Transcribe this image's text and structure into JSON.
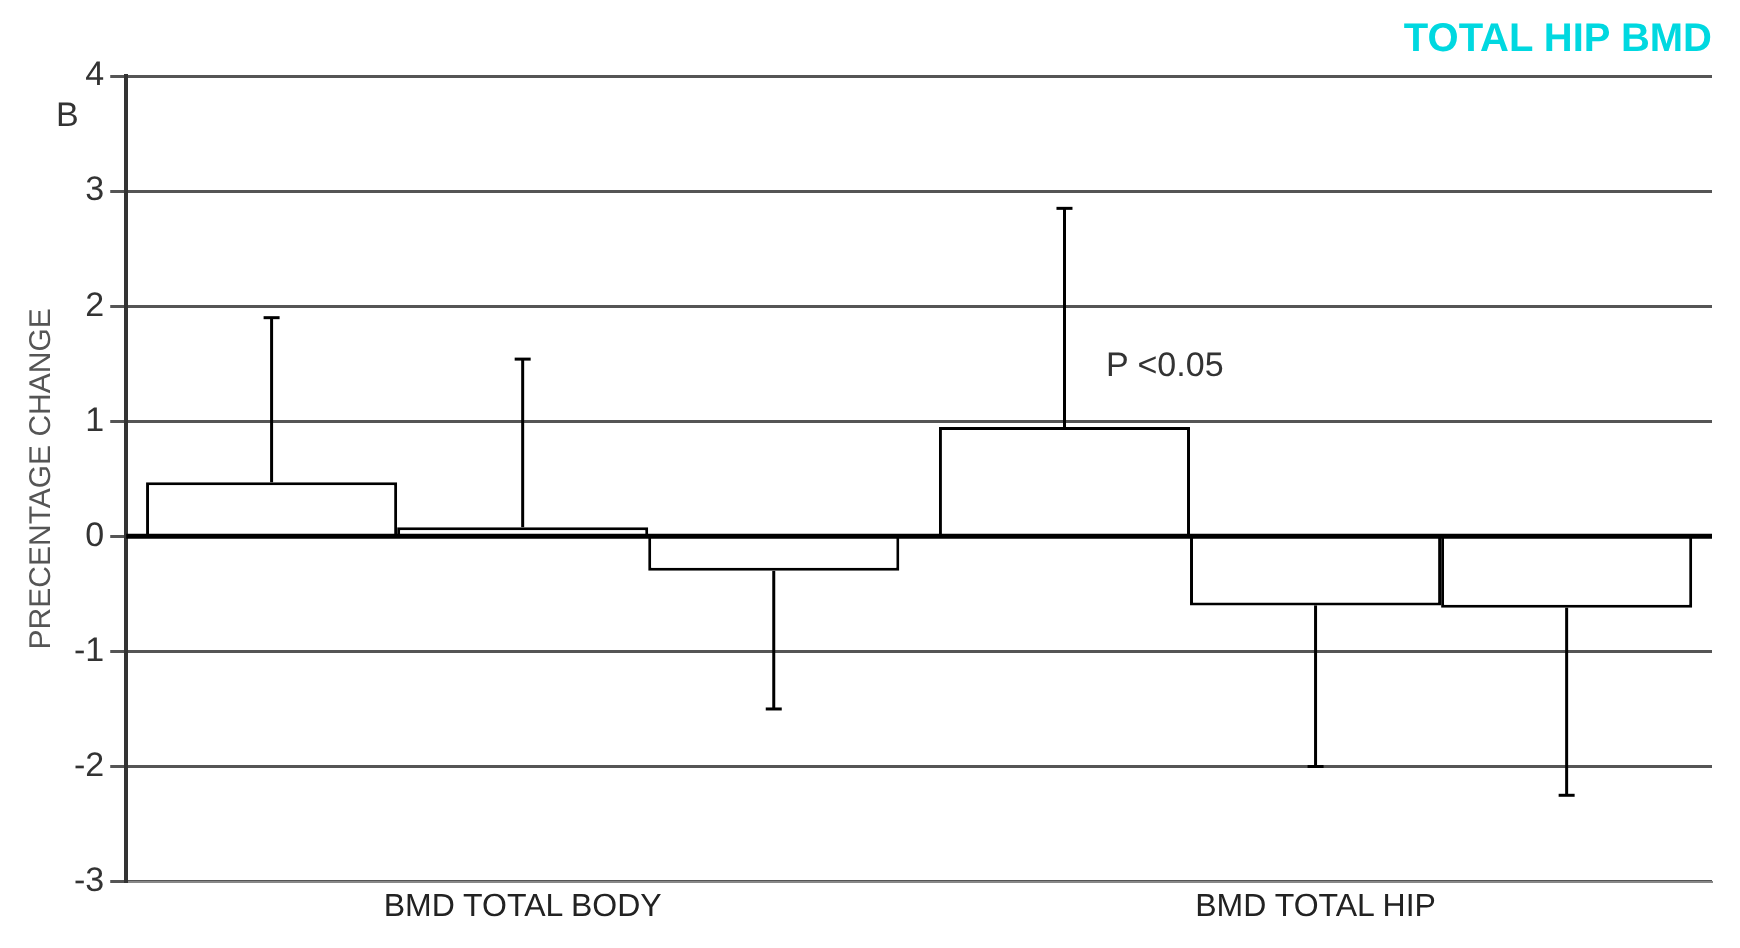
{
  "chart_data": {
    "type": "bar",
    "title": "TOTAL HIP BMD",
    "ylabel": "PRECENTAGE CHANGE",
    "categories": [
      "BMD TOTAL BODY",
      "BMD TOTAL HIP"
    ],
    "series": [
      {
        "color": "#ffffff",
        "values": [
          0.47,
          0.95
        ],
        "errors": [
          [
            0.47,
            1.9
          ],
          [
            0.95,
            2.85
          ]
        ]
      },
      {
        "color": "#ffffff",
        "values": [
          0.08,
          -0.6
        ],
        "errors": [
          [
            0.08,
            1.54
          ],
          [
            -2.0,
            -0.6
          ]
        ]
      },
      {
        "color": "#ffffff",
        "values": [
          -0.3,
          -0.62
        ],
        "errors": [
          [
            -1.5,
            -0.3
          ],
          [
            -2.25,
            -0.62
          ]
        ]
      }
    ],
    "ylim": [
      -3,
      4
    ],
    "yticks": [
      -3,
      -2,
      -1,
      0,
      1,
      2,
      3,
      4
    ],
    "grid": "y",
    "legend": false,
    "annotations": [
      "B",
      "P <0.05"
    ]
  }
}
